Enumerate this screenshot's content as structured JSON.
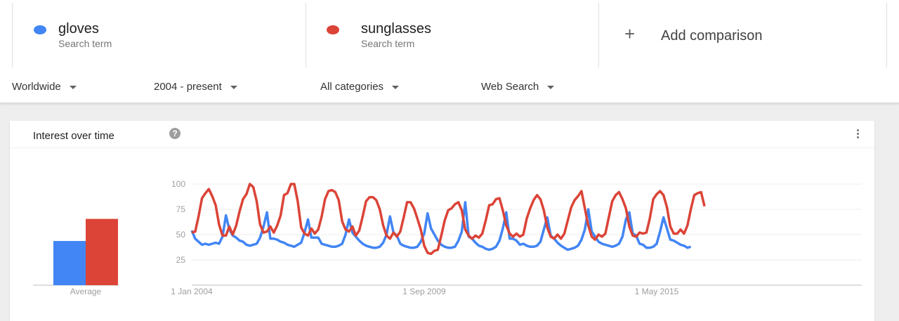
{
  "terms": [
    {
      "name": "gloves",
      "subtitle": "Search term",
      "color": "#4285f4"
    },
    {
      "name": "sunglasses",
      "subtitle": "Search term",
      "color": "#db4437"
    }
  ],
  "add_comparison": {
    "icon": "plus-icon",
    "label": "Add comparison"
  },
  "filters": {
    "region": "Worldwide",
    "time": "2004 - present",
    "category": "All categories",
    "search_type": "Web Search"
  },
  "card": {
    "title": "Interest over time",
    "help_icon": "?",
    "menu_icon": "more-vert-icon"
  },
  "chart_data": [
    {
      "type": "bar",
      "categories": [
        "Average"
      ],
      "series": [
        {
          "name": "gloves",
          "values": [
            44
          ],
          "color": "#4285f4"
        },
        {
          "name": "sunglasses",
          "values": [
            66
          ],
          "color": "#db4437"
        }
      ],
      "ylim": [
        0,
        100
      ]
    },
    {
      "type": "line",
      "x_range": [
        "2004-01",
        "2020-04"
      ],
      "x_ticks": [
        {
          "label": "1 Jan 2004",
          "x": "2004-01-01"
        },
        {
          "label": "1 Sep 2009",
          "x": "2009-09-01"
        },
        {
          "label": "1 May 2015",
          "x": "2015-05-01"
        }
      ],
      "y_ticks": [
        25,
        50,
        75,
        100
      ],
      "ylim": [
        0,
        100
      ],
      "grid": true,
      "series": [
        {
          "name": "gloves",
          "color": "#4285f4",
          "start": "2004-01",
          "values": [
            54,
            46,
            43,
            40,
            41,
            40,
            41,
            42,
            41,
            48,
            69,
            55,
            49,
            47,
            44,
            43,
            40,
            39,
            40,
            41,
            47,
            58,
            72,
            46,
            46,
            45,
            43,
            42,
            40,
            39,
            38,
            40,
            42,
            52,
            65,
            47,
            47,
            47,
            41,
            40,
            39,
            38,
            38,
            39,
            41,
            50,
            65,
            52,
            48,
            44,
            41,
            39,
            38,
            37,
            37,
            38,
            42,
            50,
            68,
            52,
            49,
            41,
            39,
            38,
            37,
            37,
            38,
            43,
            51,
            71,
            56,
            50,
            44,
            40,
            38,
            37,
            37,
            38,
            44,
            53,
            82,
            48,
            46,
            42,
            39,
            38,
            36,
            35,
            36,
            38,
            44,
            56,
            72,
            46,
            46,
            44,
            40,
            41,
            39,
            38,
            38,
            39,
            43,
            55,
            67,
            49,
            46,
            42,
            39,
            37,
            35,
            36,
            37,
            39,
            45,
            55,
            75,
            53,
            48,
            43,
            41,
            40,
            39,
            38,
            39,
            41,
            48,
            65,
            72,
            51,
            49,
            41,
            40,
            37,
            37,
            38,
            41,
            53,
            67,
            56,
            45,
            44,
            42,
            40,
            39,
            37,
            38
          ]
        },
        {
          "name": "sunglasses",
          "color": "#db4437",
          "start": "2004-01",
          "values": [
            52,
            53,
            68,
            86,
            91,
            95,
            88,
            79,
            60,
            49,
            49,
            58,
            50,
            59,
            73,
            85,
            90,
            100,
            97,
            83,
            60,
            52,
            53,
            58,
            52,
            59,
            69,
            89,
            91,
            100,
            100,
            83,
            57,
            51,
            49,
            56,
            51,
            55,
            68,
            85,
            93,
            94,
            92,
            84,
            63,
            55,
            53,
            58,
            49,
            54,
            68,
            83,
            87,
            87,
            84,
            75,
            59,
            49,
            46,
            52,
            48,
            53,
            67,
            82,
            82,
            76,
            66,
            55,
            39,
            32,
            31,
            34,
            35,
            49,
            64,
            74,
            76,
            80,
            82,
            74,
            55,
            49,
            46,
            49,
            47,
            51,
            64,
            79,
            80,
            85,
            86,
            74,
            59,
            51,
            48,
            51,
            48,
            50,
            66,
            76,
            84,
            89,
            85,
            74,
            57,
            48,
            46,
            50,
            46,
            51,
            64,
            77,
            84,
            88,
            93,
            76,
            59,
            48,
            45,
            50,
            48,
            51,
            67,
            83,
            89,
            92,
            85,
            76,
            58,
            49,
            48,
            52,
            51,
            52,
            66,
            85,
            90,
            93,
            89,
            77,
            58,
            51,
            51,
            55,
            51,
            59,
            75,
            89,
            91,
            92,
            78
          ]
        }
      ]
    }
  ]
}
